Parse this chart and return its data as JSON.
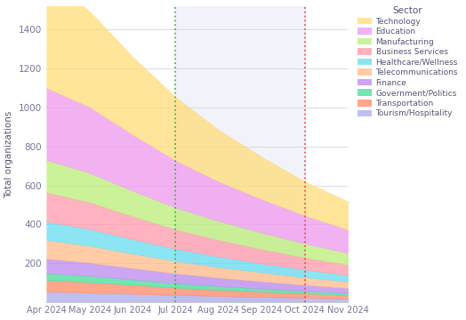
{
  "title": "",
  "ylabel": "Total organizations",
  "sectors": [
    "Tourism/Hospitality",
    "Transportation",
    "Government/Politics",
    "Finance",
    "Telecommunications",
    "Healthcare/Wellness",
    "Business Services",
    "Manufacturing",
    "Education",
    "Technology"
  ],
  "colors": [
    "#aaaaee",
    "#ff8866",
    "#44dd99",
    "#bb88ee",
    "#ffbb88",
    "#66ddee",
    "#ff99aa",
    "#bbee77",
    "#ee99ee",
    "#ffdd77"
  ],
  "months": [
    "Apr 2024",
    "May 2024",
    "Jun 2024",
    "Jul 2024",
    "Aug 2024",
    "Sep 2024",
    "Oct 2024",
    "Nov 2024"
  ],
  "legend_order": [
    "Technology",
    "Education",
    "Manufacturing",
    "Business Services",
    "Healthcare/Wellness",
    "Telecommunications",
    "Finance",
    "Government/Politics",
    "Transportation",
    "Tourism/Hospitality"
  ],
  "legend_colors": [
    "#ffdd77",
    "#ee99ee",
    "#bbee77",
    "#ff99aa",
    "#66ddee",
    "#ffbb88",
    "#bb88ee",
    "#44dd99",
    "#ff8866",
    "#aaaaee"
  ],
  "data": {
    "Tourism/Hospitality": [
      55,
      50,
      44,
      38,
      33,
      28,
      24,
      20
    ],
    "Transportation": [
      60,
      54,
      46,
      38,
      32,
      27,
      22,
      18
    ],
    "Government/Politics": [
      35,
      32,
      28,
      23,
      19,
      16,
      13,
      10
    ],
    "Finance": [
      75,
      68,
      58,
      50,
      43,
      37,
      31,
      26
    ],
    "Telecommunications": [
      95,
      86,
      74,
      63,
      54,
      46,
      39,
      33
    ],
    "Healthcare/Wellness": [
      95,
      86,
      74,
      63,
      54,
      46,
      39,
      33
    ],
    "Business Services": [
      150,
      138,
      118,
      100,
      86,
      74,
      63,
      53
    ],
    "Manufacturing": [
      165,
      150,
      130,
      111,
      96,
      83,
      71,
      60
    ],
    "Education": [
      370,
      338,
      288,
      242,
      203,
      172,
      144,
      120
    ],
    "Technology": [
      560,
      492,
      400,
      325,
      265,
      218,
      175,
      145
    ]
  },
  "vline_green_idx": 3,
  "vline_red_idx": 6,
  "ylim": [
    0,
    1520
  ],
  "yticks": [
    0,
    200,
    400,
    600,
    800,
    1000,
    1200,
    1400
  ],
  "background_color": "#ffffff",
  "shaded_color": "#e8eaf6",
  "shaded_alpha": 0.55
}
